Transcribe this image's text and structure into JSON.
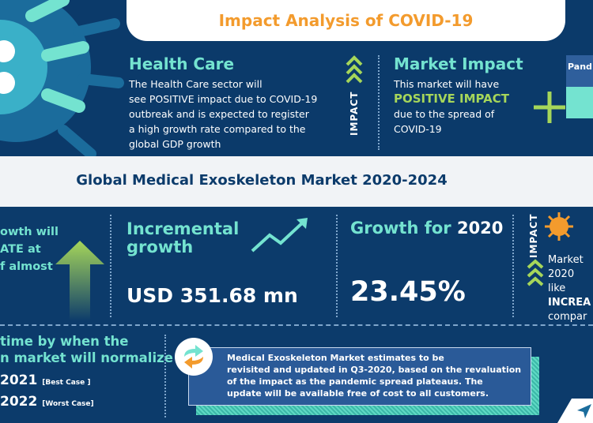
{
  "header": {
    "title": "Impact Analysis of COVID-19"
  },
  "health_care": {
    "heading": "Health Care",
    "lines": [
      "The Health Care sector will",
      "see POSITIVE impact due to COVID-19",
      "outbreak and is expected to register",
      "a high growth rate compared to the",
      "global GDP growth"
    ],
    "impact_label": "IMPACT"
  },
  "market_impact": {
    "heading": "Market Impact",
    "line1": "This market will have",
    "highlight": "POSITIVE IMPACT",
    "line3": "due to the spread of",
    "line4": "COVID-19"
  },
  "pandemic_box": {
    "label": "Pand"
  },
  "subtitle": "Global Medical Exoskeleton Market 2020-2024",
  "growth_col": {
    "lines": [
      "owth will",
      "ATE at",
      "f almost"
    ]
  },
  "incremental": {
    "heading1": "Incremental",
    "heading2": "growth",
    "value": "USD 351.68 mn"
  },
  "growth2020": {
    "heading": "Growth for",
    "year": "2020",
    "value": "23.45%"
  },
  "impact_col": {
    "impact_label": "IMPACT",
    "lines": [
      "Market",
      "2020 like",
      "INCREA",
      "compar"
    ]
  },
  "normalize": {
    "line1": "time by when the",
    "line2": "n market will normalize",
    "best_year": "2021",
    "best_label": "[Best Case ]",
    "worst_year": "2022",
    "worst_label": "[Worst Case]"
  },
  "note": {
    "lines": [
      "Medical Exoskeleton Market estimates to be",
      "revisited and updated in Q3-2020, based on the revaluation",
      "of the impact as the pandemic spread plateaus. The",
      "update will be available free of cost to all customers."
    ]
  },
  "colors": {
    "navy": "#0b3a6a",
    "teal": "#74e3d0",
    "orange": "#f39b2d",
    "green": "#a6d65a"
  }
}
